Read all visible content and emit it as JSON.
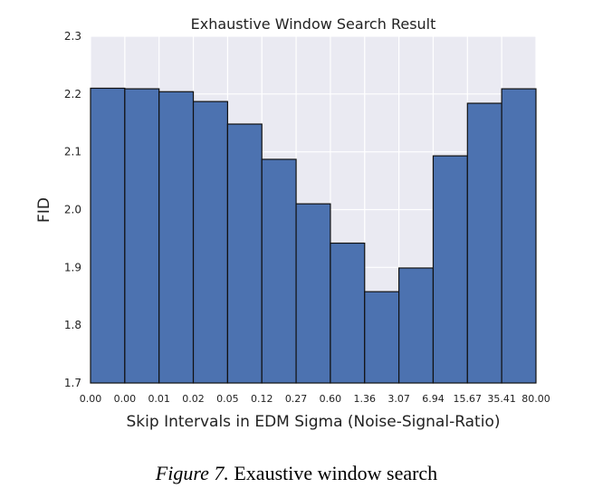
{
  "chart_data": {
    "type": "bar",
    "title": "Exhaustive Window Search Result",
    "xlabel": "Skip Intervals in EDM Sigma (Noise-Signal-Ratio)",
    "ylabel": "FID",
    "ylim": [
      1.7,
      2.3
    ],
    "yticks": [
      "1.7",
      "1.8",
      "1.9",
      "2.0",
      "2.1",
      "2.2",
      "2.3"
    ],
    "edge_labels": [
      "0.00",
      "0.00",
      "0.01",
      "0.02",
      "0.05",
      "0.12",
      "0.27",
      "0.60",
      "1.36",
      "3.07",
      "6.94",
      "15.67",
      "35.41",
      "80.00"
    ],
    "values": [
      2.21,
      2.209,
      2.204,
      2.187,
      2.148,
      2.087,
      2.01,
      1.942,
      1.858,
      1.899,
      2.093,
      2.184,
      2.209
    ],
    "bar_color": "#4c72b0",
    "background_color": "#eaeaf2",
    "grid": true
  },
  "caption": {
    "figure_label": "Figure 7.",
    "text": "Exaustive window search"
  }
}
